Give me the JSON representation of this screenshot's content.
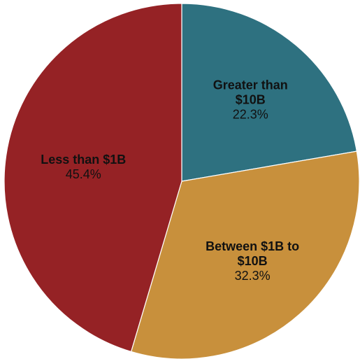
{
  "chart_data": {
    "type": "pie",
    "title": "",
    "start_angle_deg": 0,
    "direction": "clockwise",
    "slices": [
      {
        "label_lines": [
          "Greater than",
          "$10B"
        ],
        "label": "Greater than $10B",
        "value": 22.3,
        "value_label": "22.3%",
        "color": "#2E7180"
      },
      {
        "label_lines": [
          "Between $1B to",
          "$10B"
        ],
        "label": "Between $1B to $10B",
        "value": 32.3,
        "value_label": "32.3%",
        "color": "#C8903C"
      },
      {
        "label_lines": [
          "Less than $1B"
        ],
        "label": "Less than $1B",
        "value": 45.4,
        "value_label": "45.4%",
        "color": "#952225"
      }
    ]
  }
}
